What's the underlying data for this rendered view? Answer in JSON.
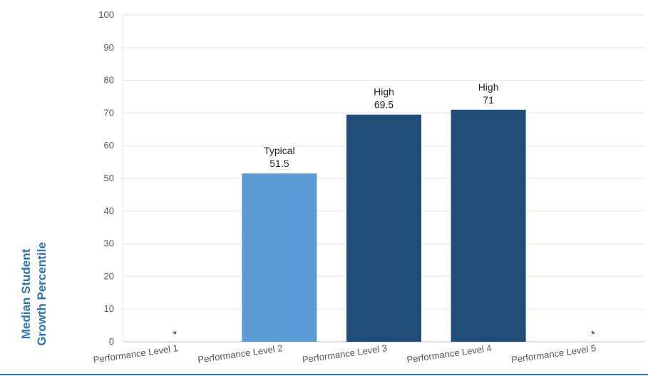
{
  "chart_data": {
    "type": "bar",
    "ylabel_lines": [
      "Median Student",
      "Growth Percentile"
    ],
    "categories": [
      "Performance Level 1",
      "Performance Level 2",
      "Performance Level 3",
      "Performance Level 4",
      "Performance Level 5"
    ],
    "values": [
      null,
      51.5,
      69.5,
      71,
      null
    ],
    "value_labels": [
      "*",
      "51.5",
      "69.5",
      "71",
      "*"
    ],
    "growth_labels": [
      "",
      "Typical",
      "High",
      "High",
      ""
    ],
    "bar_colors": [
      "",
      "#5b9bd5",
      "#1f4e79",
      "#1f4e79",
      ""
    ],
    "yticks": [
      0,
      10,
      20,
      30,
      40,
      50,
      60,
      70,
      80,
      90,
      100
    ],
    "ylim": [
      0,
      100
    ],
    "grid": true,
    "accent_line_color": "#2e75b6"
  }
}
